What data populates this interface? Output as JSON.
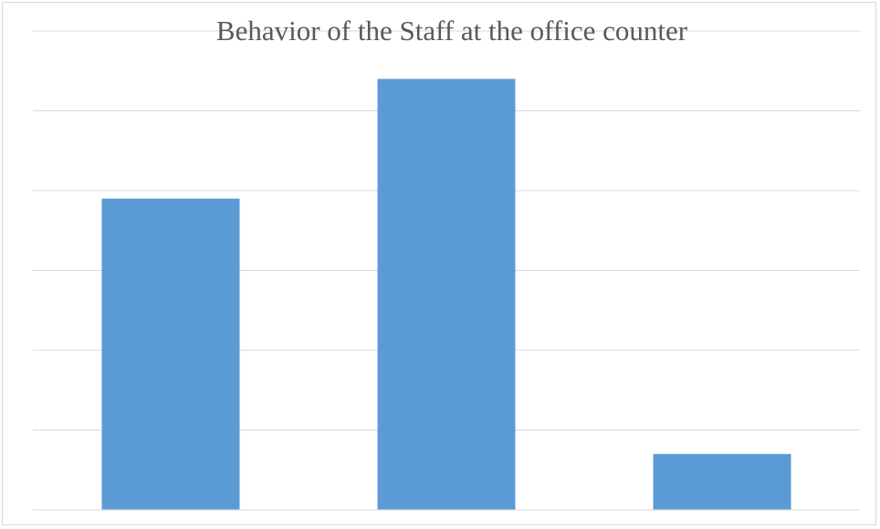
{
  "chart_data": {
    "type": "bar",
    "title": "Behavior of the Staff at the office counter",
    "xlabel": "",
    "ylabel": "",
    "categories": [
      "",
      "",
      ""
    ],
    "values": [
      39,
      54,
      7
    ],
    "ylim": [
      0,
      60
    ],
    "ytick_step": 10,
    "grid": true,
    "legend": "none",
    "bar_color": "#5b9bd5",
    "grid_color": "#d9d9d9"
  }
}
